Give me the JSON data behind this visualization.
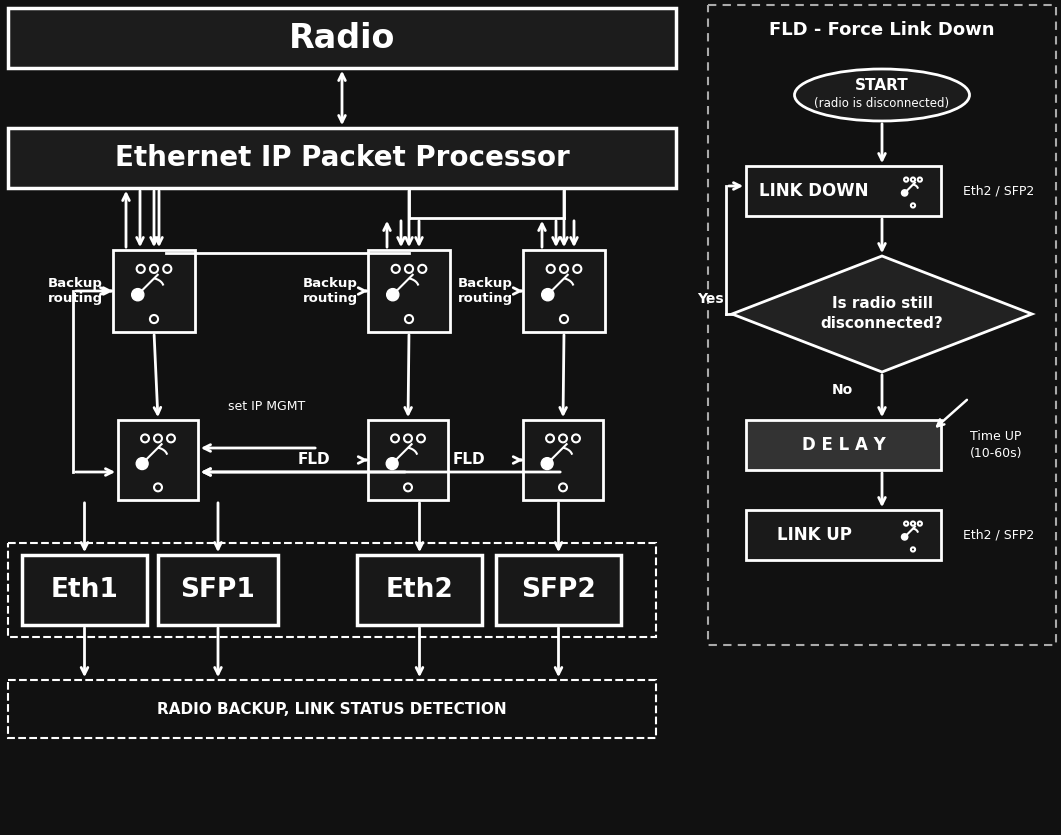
{
  "bg_color": "#111111",
  "fg_color": "#ffffff",
  "box_fill": "#1a1a1a",
  "box_dark": "#222222",
  "title_fld": "FLD - Force Link Down",
  "radio_label": "Radio",
  "eth_proc_label": "Ethernet IP Packet Processor",
  "eth1_label": "Eth1",
  "sfp1_label": "SFP1",
  "eth2_label": "Eth2",
  "sfp2_label": "SFP2",
  "backup_routing": "Backup\nrouting",
  "set_ip_mgmt": "set IP MGMT",
  "fld_label": "FLD",
  "radio_backup_label": "RADIO BACKUP, LINK STATUS DETECTION",
  "start_label_1": "START",
  "start_label_2": "(radio is disconnected)",
  "link_down_label": "LINK DOWN",
  "diamond_label_1": "Is radio still",
  "diamond_label_2": "disconnected?",
  "yes_label": "Yes",
  "no_label": "No",
  "delay_label": "D E L A Y",
  "link_up_label": "LINK UP",
  "eth2_sfp2_1": "Eth2 / SFP2",
  "time_up_1": "Time UP",
  "time_up_2": "(10-60s)",
  "eth2_sfp2_2": "Eth2 / SFP2"
}
